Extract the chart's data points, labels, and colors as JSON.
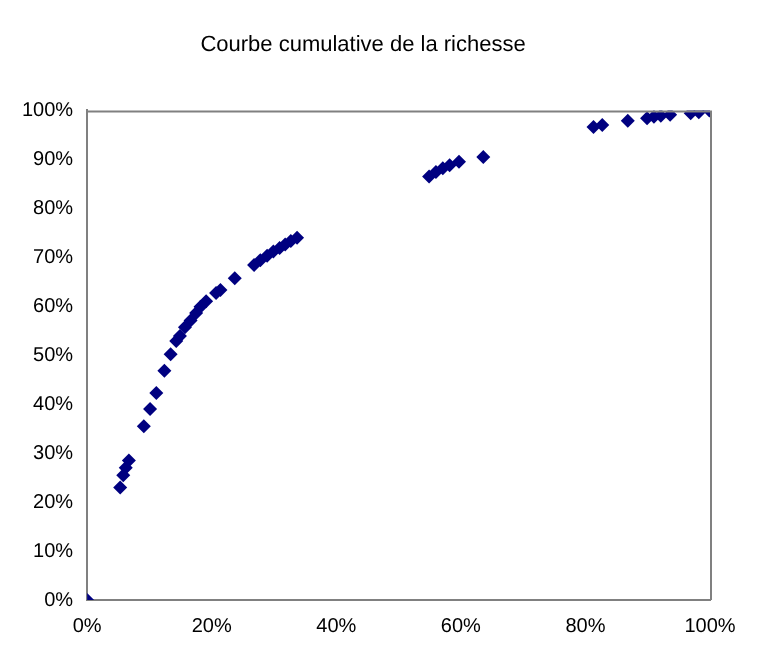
{
  "chart_data": {
    "type": "scatter",
    "title": "Courbe cumulative de la richesse",
    "marker": "diamond",
    "grid": false,
    "legend": false,
    "series": [
      {
        "color": "#000080",
        "x": [
          0,
          5.3,
          5.8,
          6.2,
          6.7,
          9.1,
          10.1,
          11.1,
          12.4,
          13.4,
          14.3,
          14.9,
          15.7,
          16.6,
          17.5,
          18.2,
          19.1,
          20.7,
          21.4,
          23.7,
          26.8,
          27.8,
          28.9,
          29.9,
          30.9,
          31.8,
          32.7,
          33.7,
          54.9,
          56,
          57.1,
          58.2,
          59.7,
          63.6,
          81.3,
          82.7,
          86.8,
          89.9,
          91,
          92.1,
          93.6,
          96.9,
          98.2,
          99.9
        ],
        "values": [
          0,
          23,
          25.5,
          27,
          28.5,
          35.5,
          39,
          42.3,
          46.8,
          50.2,
          52.9,
          53.9,
          55.7,
          57.1,
          58.6,
          59.9,
          61,
          62.7,
          63.3,
          65.7,
          68.4,
          69.4,
          70.3,
          71.2,
          71.9,
          72.6,
          73.3,
          74,
          86.5,
          87.4,
          88.2,
          88.8,
          89.5,
          90.5,
          96.6,
          97,
          97.9,
          98.4,
          98.7,
          98.9,
          99.1,
          99.4,
          99.6,
          100
        ]
      }
    ],
    "xlim": [
      0,
      100
    ],
    "xticks": [
      {
        "value": 0,
        "label": "0%"
      },
      {
        "value": 20,
        "label": "20%"
      },
      {
        "value": 40,
        "label": "40%"
      },
      {
        "value": 60,
        "label": "60%"
      },
      {
        "value": 80,
        "label": "80%"
      },
      {
        "value": 100,
        "label": "100%"
      }
    ],
    "ylim": [
      0,
      100
    ],
    "yticks": [
      {
        "value": 0,
        "label": "0%"
      },
      {
        "value": 10,
        "label": "10%"
      },
      {
        "value": 20,
        "label": "20%"
      },
      {
        "value": 30,
        "label": "30%"
      },
      {
        "value": 40,
        "label": "40%"
      },
      {
        "value": 50,
        "label": "50%"
      },
      {
        "value": 60,
        "label": "60%"
      },
      {
        "value": 70,
        "label": "70%"
      },
      {
        "value": 80,
        "label": "80%"
      },
      {
        "value": 90,
        "label": "90%"
      },
      {
        "value": 100,
        "label": "100%"
      }
    ]
  }
}
